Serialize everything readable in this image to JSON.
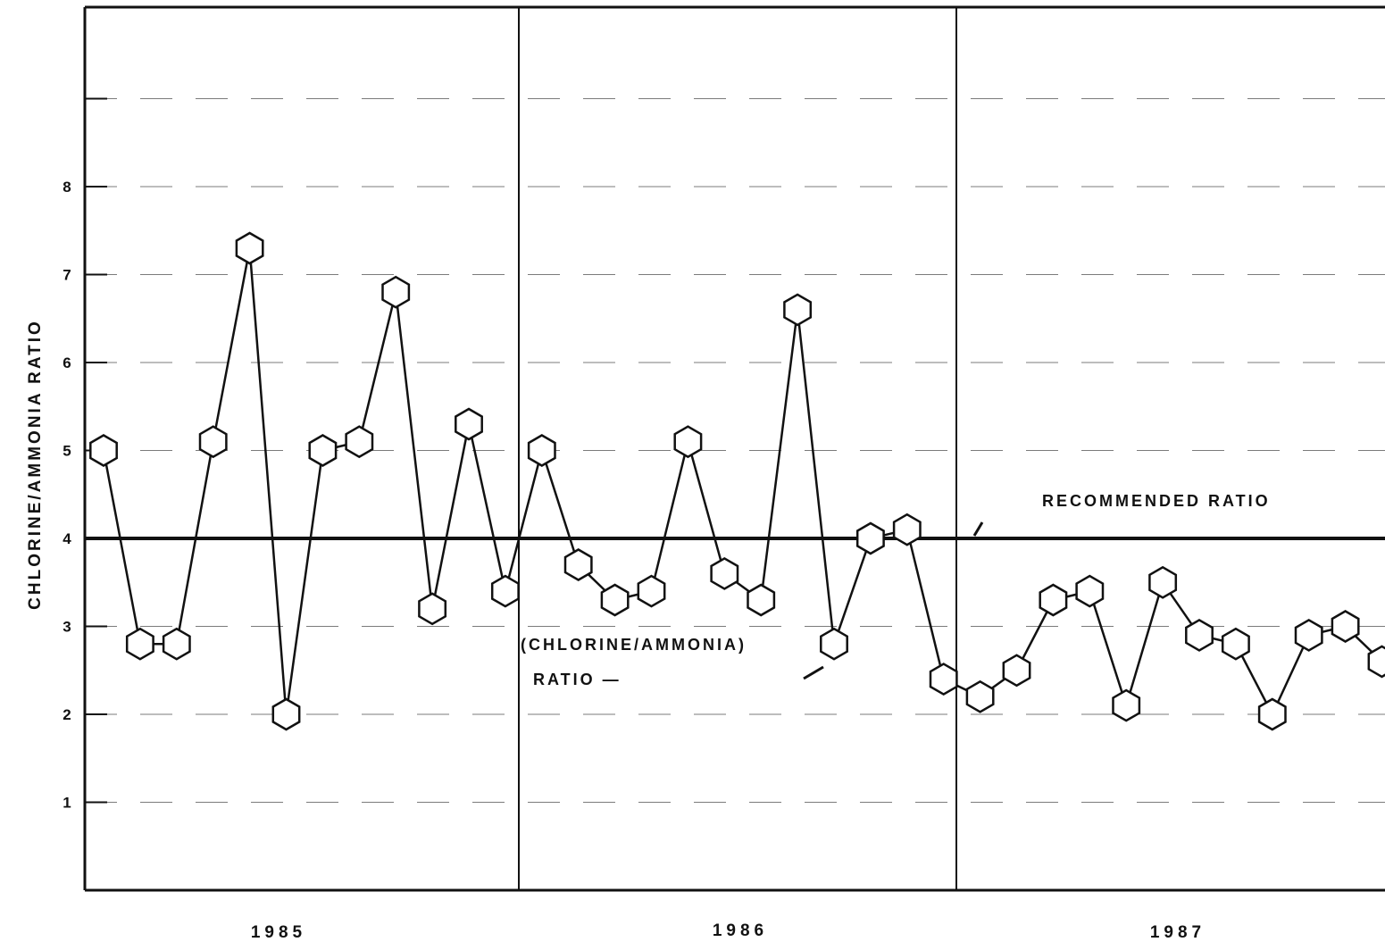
{
  "chart_data": {
    "type": "line",
    "ylabel": "CHLORINE/AMMONIA RATIO",
    "xlabel": "",
    "ylim": [
      0,
      10
    ],
    "yticks": [
      "1",
      "2",
      "3",
      "4",
      "5",
      "6",
      "7",
      "8"
    ],
    "grid": true,
    "years": [
      "1985",
      "1986",
      "1987"
    ],
    "series": [
      {
        "name": "(CHLORINE/AMMONIA) RATIO",
        "values": [
          5.0,
          2.8,
          2.8,
          5.1,
          7.3,
          2.0,
          5.0,
          5.1,
          6.8,
          3.2,
          5.3,
          3.4,
          5.0,
          3.7,
          3.3,
          3.4,
          5.1,
          3.6,
          3.3,
          6.6,
          2.8,
          4.0,
          4.1,
          2.4,
          2.2,
          2.5,
          3.3,
          3.4,
          2.1,
          3.5,
          2.9,
          2.8,
          2.0,
          2.9,
          3.0,
          2.6
        ]
      }
    ],
    "reference_line": {
      "label": "RECOMMENDED RATIO",
      "value": 4.0
    },
    "annotations": [
      {
        "text": "(CHLORINE/AMMONIA)",
        "line2": "RATIO —"
      }
    ]
  }
}
